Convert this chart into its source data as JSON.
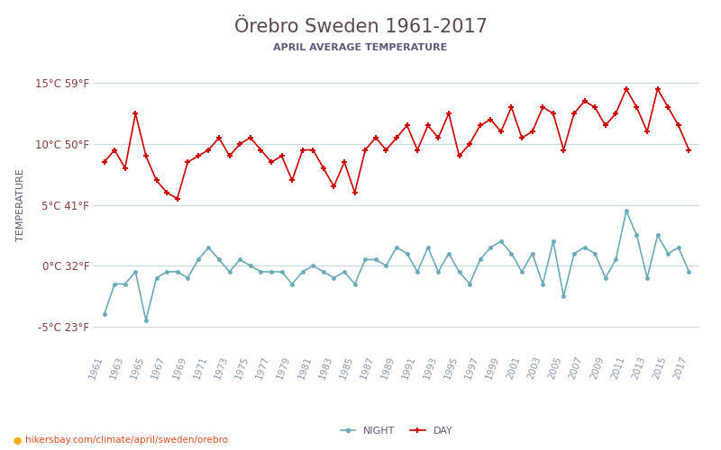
{
  "title": "Örebro Sweden 1961-2017",
  "subtitle": "APRIL AVERAGE TEMPERATURE",
  "ylabel": "TEMPERATURE",
  "watermark": "hikersbay.com/climate/april/sweden/orebro",
  "years": [
    1961,
    1962,
    1963,
    1964,
    1965,
    1966,
    1967,
    1968,
    1969,
    1970,
    1971,
    1972,
    1973,
    1974,
    1975,
    1976,
    1977,
    1978,
    1979,
    1980,
    1981,
    1982,
    1983,
    1984,
    1985,
    1986,
    1987,
    1988,
    1989,
    1990,
    1991,
    1992,
    1993,
    1994,
    1995,
    1996,
    1997,
    1998,
    1999,
    2000,
    2001,
    2002,
    2003,
    2004,
    2005,
    2006,
    2007,
    2008,
    2009,
    2010,
    2011,
    2012,
    2013,
    2014,
    2015,
    2016,
    2017
  ],
  "day_temps": [
    8.5,
    9.5,
    8.0,
    12.5,
    9.0,
    7.0,
    6.0,
    5.5,
    8.5,
    9.0,
    9.5,
    10.5,
    9.0,
    10.0,
    10.5,
    9.5,
    8.5,
    9.0,
    7.0,
    9.5,
    9.5,
    8.0,
    6.5,
    8.5,
    6.0,
    9.5,
    10.5,
    9.5,
    10.5,
    11.5,
    9.5,
    11.5,
    10.5,
    12.5,
    9.0,
    10.0,
    11.5,
    12.0,
    11.0,
    13.0,
    10.5,
    11.0,
    13.0,
    12.5,
    9.5,
    12.5,
    13.5,
    13.0,
    11.5,
    12.5,
    14.5,
    13.0,
    11.0,
    14.5,
    13.0,
    11.5,
    9.5
  ],
  "night_temps": [
    -4.0,
    -1.5,
    -1.5,
    -0.5,
    -4.5,
    -1.0,
    -0.5,
    -0.5,
    -1.0,
    0.5,
    1.5,
    0.5,
    -0.5,
    0.5,
    0.0,
    -0.5,
    -0.5,
    -0.5,
    -1.5,
    -0.5,
    0.0,
    -0.5,
    -1.0,
    -0.5,
    -1.5,
    0.5,
    0.5,
    0.0,
    1.5,
    1.0,
    -0.5,
    1.5,
    -0.5,
    1.0,
    -0.5,
    -1.5,
    0.5,
    1.5,
    2.0,
    1.0,
    -0.5,
    1.0,
    -1.5,
    2.0,
    -2.5,
    1.0,
    1.5,
    1.0,
    -1.0,
    0.5,
    4.5,
    2.5,
    -1.0,
    2.5,
    1.0,
    1.5,
    -0.5
  ],
  "day_color": "#cc0000",
  "night_color": "#6aabba",
  "title_color": "#5a4a4a",
  "subtitle_color": "#5a5a7a",
  "ylabel_color": "#5a5a7a",
  "axis_label_color": "#8a3a3a",
  "tick_color": "#8a9aaa",
  "grid_color": "#c8d8e0",
  "bg_color": "#ffffff",
  "yticks_c": [
    -5,
    0,
    5,
    10,
    15
  ],
  "yticks_f": [
    23,
    32,
    41,
    50,
    59
  ],
  "ylim": [
    -7,
    17
  ],
  "legend_night": "NIGHT",
  "legend_day": "DAY",
  "watermark_color": "#e05020"
}
